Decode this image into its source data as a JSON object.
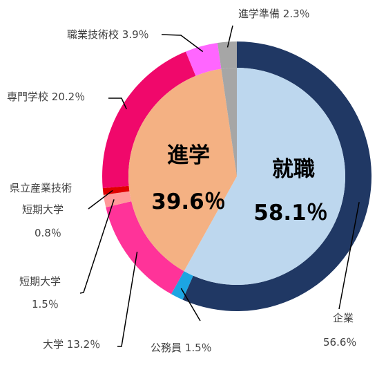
{
  "chart_data": {
    "type": "pie",
    "subtype": "nested-donut",
    "colors": {
      "background": "#ffffff",
      "leader_line": "#000000"
    },
    "inner": [
      {
        "label": "就職",
        "value": 58.1,
        "value_label": "58.1％",
        "color": "#BDD7EE"
      },
      {
        "label": "進学",
        "value": 39.6,
        "value_label": "39.6％",
        "color": "#F4B183"
      },
      {
        "label": "進学準備",
        "value": 2.3,
        "color": "#A6A6A6"
      }
    ],
    "outer": [
      {
        "label": "企業",
        "value_label": "56.6％",
        "value": 56.6,
        "color": "#203864"
      },
      {
        "label": "公務員",
        "value_label": "1.5％",
        "value": 1.5,
        "color": "#1CA5E2"
      },
      {
        "label": "大学",
        "value_label": "13.2％",
        "value": 13.2,
        "color": "#FF3399"
      },
      {
        "label": "短期大学",
        "value_label": "1.5％",
        "value": 1.5,
        "color": "#FF9999"
      },
      {
        "label": "県立産業技術短期大学",
        "label_lines": [
          "県立産業技術",
          "短期大学"
        ],
        "value_label": "0.8％",
        "value": 0.8,
        "color": "#E00000"
      },
      {
        "label": "専門学校",
        "value_label": "20.2％",
        "value": 20.2,
        "color": "#F0086B"
      },
      {
        "label": "職業技術校",
        "value_label": "3.9％",
        "value": 3.9,
        "color": "#FF66FF"
      },
      {
        "label": "進学準備",
        "value_label": "2.3％",
        "value": 2.3,
        "color": "#A6A6A6"
      }
    ]
  }
}
